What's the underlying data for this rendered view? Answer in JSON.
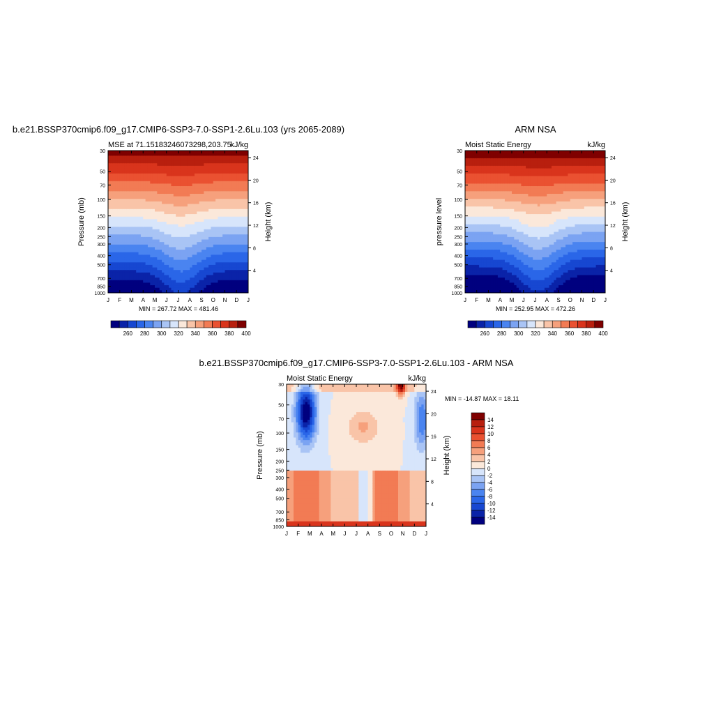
{
  "palette": [
    "#00007f",
    "#0a23a8",
    "#1747d1",
    "#2a66e8",
    "#4a84f0",
    "#7ba3f2",
    "#a9c4f5",
    "#d7e5fb",
    "#fbe8da",
    "#f9c4a8",
    "#f6a07c",
    "#f27b54",
    "#ea5131",
    "#d9341c",
    "#b81f0e",
    "#7f0000"
  ],
  "panels": [
    {
      "id": "model",
      "title": "b.e21.BSSP370cmip6.f09_g17.CMIP6-SSP3-7.0-SSP1-2.6Lu.103 (yrs 2065-2089)",
      "left_string": "MSE at 71.15183246073298,203.75",
      "right_string": "kJ/kg",
      "ylabel": "Pressure (mb)",
      "rlabel": "Height (km)",
      "minmax": "MIN = 267.72 MAX = 481.46"
    },
    {
      "id": "obs",
      "title": "ARM NSA",
      "left_string": "Moist Static Energy",
      "right_string": "kJ/kg",
      "ylabel": "pressure level",
      "rlabel": "Height (km)",
      "minmax": "MIN = 252.95 MAX = 472.26"
    },
    {
      "id": "diff",
      "title": "b.e21.BSSP370cmip6.f09_g17.CMIP6-SSP3-7.0-SSP1-2.6Lu.103 - ARM NSA",
      "left_string": "Moist Static Energy",
      "right_string": "kJ/kg",
      "ylabel": "Pressure (mb)",
      "rlabel": "Height (km)",
      "minmax": "MIN = -14.87 MAX =  18.11"
    }
  ],
  "chart_data": [
    {
      "type": "heatmap",
      "panel": "model",
      "x": [
        "J",
        "F",
        "M",
        "A",
        "M",
        "J",
        "J",
        "A",
        "S",
        "O",
        "N",
        "D",
        "J"
      ],
      "y_ticks": [
        "30",
        "50",
        "70",
        "100",
        "150",
        "200",
        "250",
        "300",
        "400",
        "500",
        "700",
        "850",
        "1000"
      ],
      "y2_ticks": [
        "24",
        "20",
        "16",
        "12",
        "8",
        "4"
      ],
      "ylim": [
        1000,
        30
      ],
      "colorbar_labels": [
        "260",
        "280",
        "300",
        "320",
        "340",
        "360",
        "380",
        "400"
      ],
      "colorbar_levels": [
        260,
        270,
        280,
        290,
        300,
        310,
        320,
        330,
        340,
        350,
        360,
        370,
        380,
        390,
        400
      ]
    },
    {
      "type": "heatmap",
      "panel": "obs",
      "x": [
        "J",
        "F",
        "M",
        "A",
        "M",
        "J",
        "J",
        "A",
        "S",
        "O",
        "N",
        "D",
        "J"
      ],
      "y_ticks": [
        "30",
        "50",
        "70",
        "100",
        "150",
        "200",
        "250",
        "300",
        "400",
        "500",
        "700",
        "850",
        "1000"
      ],
      "y2_ticks": [
        "24",
        "20",
        "16",
        "12",
        "8",
        "4"
      ],
      "ylim": [
        1000,
        30
      ],
      "colorbar_labels": [
        "260",
        "280",
        "300",
        "320",
        "340",
        "360",
        "380",
        "400"
      ],
      "colorbar_levels": [
        260,
        270,
        280,
        290,
        300,
        310,
        320,
        330,
        340,
        350,
        360,
        370,
        380,
        390,
        400
      ]
    },
    {
      "type": "heatmap",
      "panel": "diff",
      "x": [
        "J",
        "F",
        "M",
        "A",
        "M",
        "J",
        "J",
        "A",
        "S",
        "O",
        "N",
        "D",
        "J"
      ],
      "y_ticks": [
        "30",
        "50",
        "70",
        "100",
        "150",
        "200",
        "250",
        "300",
        "400",
        "500",
        "700",
        "850",
        "1000"
      ],
      "y2_ticks": [
        "24",
        "20",
        "16",
        "12",
        "8",
        "4"
      ],
      "ylim": [
        1000,
        30
      ],
      "colorbar_labels": [
        "14",
        "12",
        "10",
        "8",
        "6",
        "4",
        "2",
        "0",
        "-2",
        "-4",
        "-6",
        "-8",
        "-10",
        "-12",
        "-14"
      ],
      "colorbar_levels": [
        -14,
        -12,
        -10,
        -8,
        -6,
        -4,
        -2,
        -1,
        0,
        2,
        4,
        6,
        8,
        10,
        12,
        14
      ]
    }
  ]
}
